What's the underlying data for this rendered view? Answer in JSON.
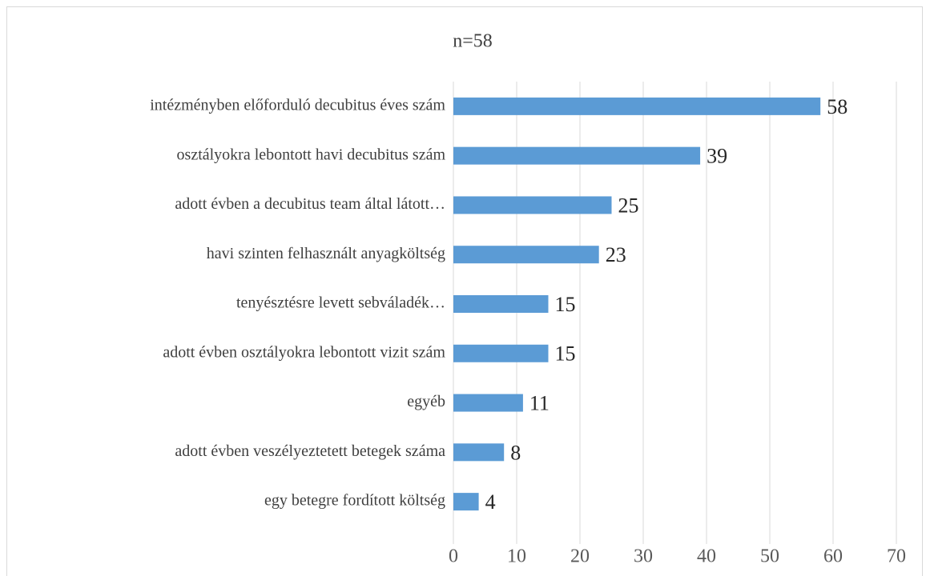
{
  "chart_data": {
    "type": "bar",
    "orientation": "horizontal",
    "title": "n=58",
    "categories": [
      "intézményben előforduló decubitus éves szám",
      "osztályokra lebontott havi decubitus szám",
      "adott évben a decubitus team által látott…",
      "havi szinten felhasznált anyagköltség",
      "tenyésztésre levett sebváladék…",
      "adott évben osztályokra lebontott vizit szám",
      "egyéb",
      "adott évben veszélyeztetett betegek száma",
      "egy betegre fordított költség"
    ],
    "values": [
      58,
      39,
      25,
      23,
      15,
      15,
      11,
      8,
      4
    ],
    "color": "#5b9bd5",
    "xlim": [
      0,
      70
    ],
    "xticks": [
      0,
      10,
      20,
      30,
      40,
      50,
      60,
      70
    ],
    "grid": true
  }
}
